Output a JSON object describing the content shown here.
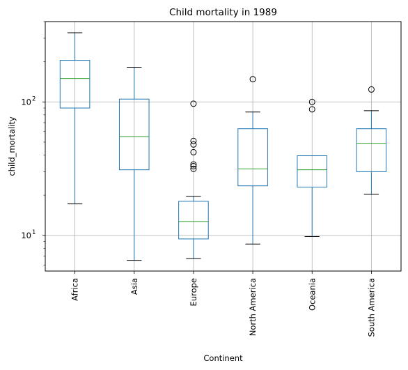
{
  "chart_data": {
    "type": "box",
    "title": "Child mortality in 1989",
    "xlabel": "Continent",
    "ylabel": "child_mortality",
    "yscale": "log",
    "ylim": [
      5.4,
      400
    ],
    "yticks": [
      {
        "value": 10,
        "base": "10",
        "exp": "1"
      },
      {
        "value": 100,
        "base": "10",
        "exp": "2"
      }
    ],
    "grid": true,
    "colors": {
      "box": "#1f77b4",
      "median": "#2ca02c",
      "whisker": "#1f77b4",
      "outlier": "#000000",
      "grid": "#b0b0b0"
    },
    "categories": [
      "Africa",
      "Asia",
      "Europe",
      "North America",
      "Oceania",
      "South America"
    ],
    "boxes": [
      {
        "category": "Africa",
        "whisker_low": 17.2,
        "q1": 90,
        "median": 150,
        "q3": 205,
        "whisker_high": 330,
        "outliers": []
      },
      {
        "category": "Asia",
        "whisker_low": 6.5,
        "q1": 31,
        "median": 55,
        "q3": 105,
        "whisker_high": 182,
        "outliers": []
      },
      {
        "category": "Europe",
        "whisker_low": 6.7,
        "q1": 9.4,
        "median": 12.7,
        "q3": 18,
        "whisker_high": 19.6,
        "outliers": [
          31.5,
          33,
          34,
          42,
          48,
          51,
          97
        ]
      },
      {
        "category": "North America",
        "whisker_low": 8.6,
        "q1": 23.5,
        "median": 31.5,
        "q3": 63,
        "whisker_high": 84,
        "outliers": [
          148
        ]
      },
      {
        "category": "Oceania",
        "whisker_low": 9.8,
        "q1": 23,
        "median": 31,
        "q3": 39.5,
        "whisker_high": 39.5,
        "outliers": [
          88,
          100
        ]
      },
      {
        "category": "South America",
        "whisker_low": 20.3,
        "q1": 30,
        "median": 49,
        "q3": 63,
        "whisker_high": 86,
        "outliers": [
          124
        ]
      }
    ]
  }
}
